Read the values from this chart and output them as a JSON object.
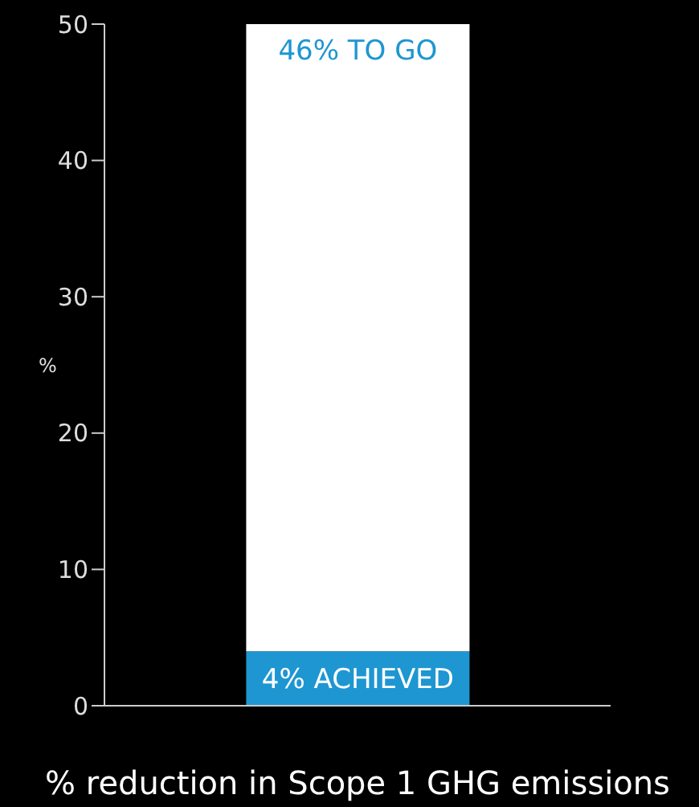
{
  "chart_data": {
    "type": "bar",
    "categories": [
      null
    ],
    "stacked": true,
    "xlabel": "% reduction in Scope 1 GHG emissions",
    "ylabel": "%",
    "ylim": [
      0,
      50
    ],
    "yticks": [
      0,
      10,
      20,
      30,
      40,
      50
    ],
    "grid": false,
    "legend": false,
    "series": [
      {
        "color": "#1e96d2",
        "values": [
          4
        ],
        "value_labels": [
          "4% ACHIEVED"
        ]
      },
      {
        "color": "#ffffff",
        "values": [
          46
        ],
        "value_labels": [
          "46% TO GO"
        ]
      }
    ]
  }
}
